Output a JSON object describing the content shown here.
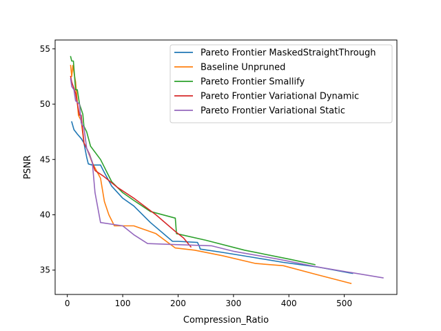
{
  "chart_data": {
    "type": "line",
    "xlabel": "Compression_Ratio",
    "ylabel": "PSNR",
    "xlim": [
      -22,
      595
    ],
    "ylim": [
      32.8,
      55.8
    ],
    "xticks": [
      0,
      100,
      200,
      300,
      400,
      500
    ],
    "yticks": [
      35,
      40,
      45,
      50,
      55
    ],
    "grid": false,
    "legend_position": "top-right",
    "series": [
      {
        "name": "Pareto Frontier MaskedStraightThrough",
        "color": "#1f77b4",
        "points": [
          [
            8,
            48.4
          ],
          [
            12,
            47.7
          ],
          [
            18,
            47.3
          ],
          [
            25,
            46.9
          ],
          [
            30,
            46.5
          ],
          [
            35,
            45.2
          ],
          [
            38,
            44.6
          ],
          [
            45,
            44.5
          ],
          [
            60,
            44.5
          ],
          [
            65,
            44.0
          ],
          [
            80,
            42.6
          ],
          [
            100,
            41.5
          ],
          [
            120,
            40.8
          ],
          [
            150,
            39.3
          ],
          [
            190,
            37.6
          ],
          [
            200,
            37.6
          ],
          [
            235,
            37.5
          ],
          [
            238,
            37.2
          ],
          [
            240,
            36.9
          ],
          [
            280,
            36.6
          ],
          [
            330,
            36.2
          ],
          [
            390,
            35.7
          ],
          [
            450,
            35.3
          ],
          [
            515,
            34.7
          ]
        ]
      },
      {
        "name": "Baseline Unpruned",
        "color": "#ff7f0e",
        "points": [
          [
            6,
            53.5
          ],
          [
            8,
            52.5
          ],
          [
            10,
            53.5
          ],
          [
            15,
            52.0
          ],
          [
            20,
            49.0
          ],
          [
            25,
            48.5
          ],
          [
            30,
            46.5
          ],
          [
            35,
            46.0
          ],
          [
            45,
            44.7
          ],
          [
            60,
            43.3
          ],
          [
            67,
            41.2
          ],
          [
            75,
            40.0
          ],
          [
            85,
            39.0
          ],
          [
            120,
            39.0
          ],
          [
            160,
            38.3
          ],
          [
            195,
            37.0
          ],
          [
            230,
            36.8
          ],
          [
            280,
            36.3
          ],
          [
            340,
            35.6
          ],
          [
            390,
            35.4
          ],
          [
            450,
            34.6
          ],
          [
            512,
            33.8
          ]
        ]
      },
      {
        "name": "Pareto Frontier Smallify",
        "color": "#2ca02c",
        "points": [
          [
            6,
            54.3
          ],
          [
            8,
            53.9
          ],
          [
            11,
            53.9
          ],
          [
            15,
            51.3
          ],
          [
            18,
            51.3
          ],
          [
            22,
            50.0
          ],
          [
            28,
            49.1
          ],
          [
            30,
            48.0
          ],
          [
            35,
            47.5
          ],
          [
            42,
            46.2
          ],
          [
            60,
            45.0
          ],
          [
            80,
            43.0
          ],
          [
            100,
            42.0
          ],
          [
            120,
            41.3
          ],
          [
            150,
            40.3
          ],
          [
            195,
            39.7
          ],
          [
            197,
            38.3
          ],
          [
            250,
            37.7
          ],
          [
            320,
            36.8
          ],
          [
            400,
            36.0
          ],
          [
            447,
            35.5
          ]
        ]
      },
      {
        "name": "Pareto Frontier Variational Dynamic",
        "color": "#d62728",
        "points": [
          [
            6,
            52.5
          ],
          [
            8,
            52.0
          ],
          [
            10,
            51.7
          ],
          [
            15,
            51.0
          ],
          [
            20,
            49.5
          ],
          [
            22,
            49.0
          ],
          [
            25,
            49.0
          ],
          [
            30,
            46.5
          ],
          [
            35,
            46.0
          ],
          [
            40,
            45.5
          ],
          [
            50,
            44.0
          ],
          [
            65,
            43.5
          ],
          [
            90,
            42.5
          ],
          [
            120,
            41.5
          ],
          [
            160,
            40.0
          ],
          [
            195,
            38.5
          ],
          [
            210,
            37.9
          ],
          [
            223,
            37.1
          ]
        ]
      },
      {
        "name": "Pareto Frontier Variational Static",
        "color": "#9467bd",
        "points": [
          [
            6,
            52.3
          ],
          [
            8,
            51.6
          ],
          [
            12,
            51.3
          ],
          [
            15,
            50.3
          ],
          [
            22,
            50.0
          ],
          [
            25,
            48.3
          ],
          [
            30,
            47.9
          ],
          [
            35,
            46.0
          ],
          [
            45,
            44.8
          ],
          [
            50,
            42.0
          ],
          [
            60,
            39.3
          ],
          [
            100,
            39.0
          ],
          [
            120,
            38.2
          ],
          [
            145,
            37.4
          ],
          [
            200,
            37.3
          ],
          [
            260,
            37.2
          ],
          [
            300,
            36.7
          ],
          [
            380,
            36.0
          ],
          [
            450,
            35.3
          ],
          [
            570,
            34.3
          ]
        ]
      }
    ]
  }
}
